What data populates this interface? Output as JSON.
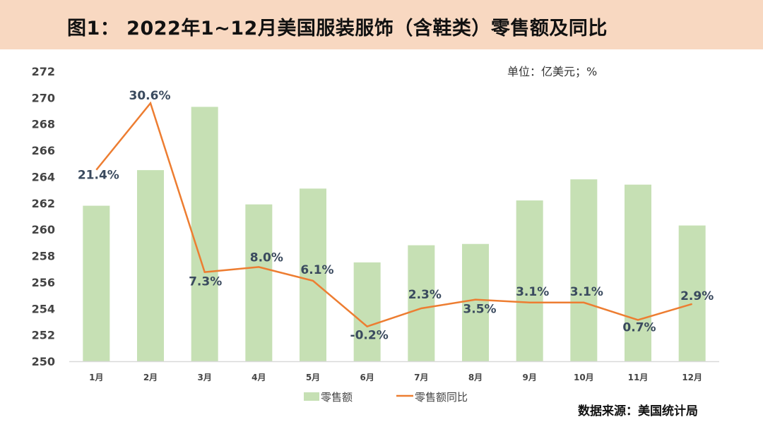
{
  "title": "图1： 2022年1~12月美国服装服饰（含鞋类）零售额及同比",
  "unit": "单位：亿美元；%",
  "source": "数据来源：美国统计局",
  "chart_data": {
    "type": "bar+line",
    "categories": [
      "1月",
      "2月",
      "3月",
      "4月",
      "5月",
      "6月",
      "7月",
      "8月",
      "9月",
      "10月",
      "11月",
      "12月"
    ],
    "ylim": [
      250,
      272
    ],
    "yticks": [
      250,
      252,
      254,
      256,
      258,
      260,
      262,
      264,
      266,
      268,
      270,
      272
    ],
    "y2lim": [
      -5,
      35
    ],
    "series": [
      {
        "name": "零售额",
        "type": "bar",
        "color": "#c6e0b4",
        "values": [
          261.8,
          264.5,
          269.3,
          261.9,
          263.1,
          257.5,
          258.8,
          258.9,
          262.2,
          263.8,
          263.4,
          260.3
        ]
      },
      {
        "name": "零售额同比",
        "type": "line",
        "axis": "secondary",
        "color": "#ed7d31",
        "values": [
          21.4,
          30.6,
          7.3,
          8.0,
          6.1,
          -0.2,
          2.3,
          3.5,
          3.1,
          3.1,
          0.7,
          2.9
        ],
        "labels": [
          "21.4%",
          "30.6%",
          "7.3%",
          "8.0%",
          "6.1%",
          "-0.2%",
          "2.3%",
          "3.5%",
          "3.1%",
          "3.1%",
          "0.7%",
          "2.9%"
        ]
      }
    ],
    "legend": "bottom",
    "grid": false
  }
}
